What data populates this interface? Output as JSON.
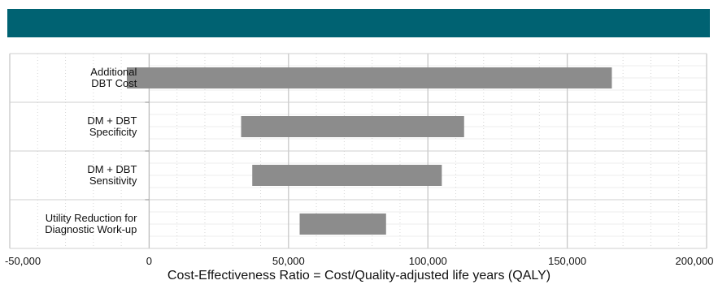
{
  "banner": {
    "color": "#006272"
  },
  "chart_data": {
    "type": "bar",
    "subtype": "tornado",
    "title": "",
    "xlabel": "Cost-Effectiveness Ratio = Cost/Quality-adjusted life years (QALY)",
    "ylabel": "",
    "xlim": [
      -50000,
      200000
    ],
    "xticks": [
      -50000,
      0,
      50000,
      100000,
      150000,
      200000
    ],
    "xtick_labels": [
      "-50,000",
      "0",
      "50,000",
      "100,000",
      "150,000",
      "200,000"
    ],
    "grid": true,
    "bar_color": "#8c8c8c",
    "categories": [
      "Additional\nDBT Cost",
      "DM + DBT\nSpecificity",
      "DM + DBT\nSensitivity",
      "Utility Reduction for\nDiagnostic Work-up"
    ],
    "ranges": [
      [
        -8000,
        166000
      ],
      [
        33000,
        113000
      ],
      [
        37000,
        105000
      ],
      [
        54000,
        85000
      ]
    ]
  }
}
